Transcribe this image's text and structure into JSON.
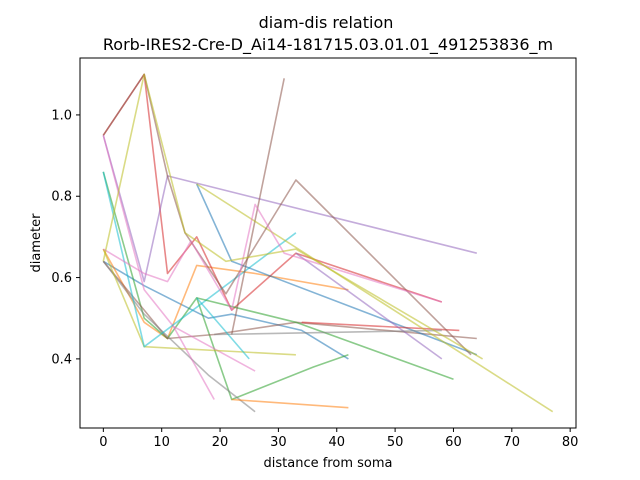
{
  "chart_data": {
    "type": "line",
    "title_line1": "diam-dis relation",
    "title_line2": "Rorb-IRES2-Cre-D_Ai14-181715.03.01.01_491253836_m",
    "xlabel": "distance from soma",
    "ylabel": "diameter",
    "xlim": [
      -4,
      81
    ],
    "ylim": [
      0.23,
      1.14
    ],
    "xticks": [
      0,
      10,
      20,
      30,
      40,
      50,
      60,
      70,
      80
    ],
    "yticks": [
      0.4,
      0.6,
      0.8,
      1.0
    ],
    "xtick_labels": [
      "0",
      "10",
      "20",
      "30",
      "40",
      "50",
      "60",
      "70",
      "80"
    ],
    "ytick_labels": [
      "0.4",
      "0.6",
      "0.8",
      "1.0"
    ],
    "grid": false,
    "series": [
      {
        "color": "#1f77b4",
        "points": [
          [
            0,
            0.64
          ],
          [
            7,
            0.58
          ],
          [
            18,
            0.5
          ],
          [
            22,
            0.51
          ],
          [
            34,
            0.47
          ],
          [
            42,
            0.4
          ]
        ]
      },
      {
        "color": "#ff7f0e",
        "points": [
          [
            0,
            0.67
          ],
          [
            7,
            0.49
          ],
          [
            11,
            0.45
          ],
          [
            16,
            0.63
          ],
          [
            26,
            0.61
          ],
          [
            42,
            0.57
          ]
        ]
      },
      {
        "color": "#2ca02c",
        "points": [
          [
            0,
            0.86
          ],
          [
            7,
            0.5
          ],
          [
            11,
            0.45
          ],
          [
            16,
            0.55
          ],
          [
            22,
            0.3
          ],
          [
            36,
            0.38
          ],
          [
            42,
            0.41
          ]
        ]
      },
      {
        "color": "#d62728",
        "points": [
          [
            0,
            0.95
          ],
          [
            7,
            1.1
          ],
          [
            11,
            0.61
          ],
          [
            16,
            0.7
          ],
          [
            22,
            0.52
          ],
          [
            33,
            0.66
          ],
          [
            58,
            0.54
          ]
        ]
      },
      {
        "color": "#9467bd",
        "points": [
          [
            0,
            0.95
          ],
          [
            7,
            0.59
          ],
          [
            11,
            0.85
          ],
          [
            64,
            0.66
          ]
        ]
      },
      {
        "color": "#8c564b",
        "points": [
          [
            0,
            0.64
          ],
          [
            7,
            0.52
          ],
          [
            11,
            0.45
          ],
          [
            19,
            0.46
          ],
          [
            33,
            0.49
          ],
          [
            64,
            0.45
          ]
        ]
      },
      {
        "color": "#e377c2",
        "points": [
          [
            0,
            0.95
          ],
          [
            7,
            0.57
          ],
          [
            12,
            0.48
          ],
          [
            26,
            0.37
          ]
        ]
      },
      {
        "color": "#7f7f7f",
        "points": [
          [
            0,
            0.64
          ],
          [
            7,
            0.51
          ],
          [
            18,
            0.36
          ],
          [
            26,
            0.27
          ]
        ]
      },
      {
        "color": "#bcbd22",
        "points": [
          [
            0,
            0.67
          ],
          [
            7,
            0.43
          ],
          [
            33,
            0.41
          ]
        ]
      },
      {
        "color": "#17becf",
        "points": [
          [
            0,
            0.86
          ],
          [
            7,
            0.43
          ],
          [
            33,
            0.71
          ]
        ]
      },
      {
        "color": "#1f77b4",
        "points": [
          [
            16,
            0.83
          ],
          [
            22,
            0.64
          ],
          [
            64,
            0.41
          ]
        ]
      },
      {
        "color": "#ff7f0e",
        "points": [
          [
            22,
            0.3
          ],
          [
            42,
            0.28
          ]
        ]
      },
      {
        "color": "#2ca02c",
        "points": [
          [
            16,
            0.55
          ],
          [
            33,
            0.49
          ],
          [
            60,
            0.35
          ]
        ]
      },
      {
        "color": "#d62728",
        "points": [
          [
            34,
            0.49
          ],
          [
            61,
            0.47
          ]
        ]
      },
      {
        "color": "#9467bd",
        "points": [
          [
            33,
            0.66
          ],
          [
            58,
            0.4
          ]
        ]
      },
      {
        "color": "#8c564b",
        "points": [
          [
            22,
            0.46
          ],
          [
            31,
            1.09
          ]
        ]
      },
      {
        "color": "#e377c2",
        "points": [
          [
            12,
            0.48
          ],
          [
            19,
            0.3
          ]
        ]
      },
      {
        "color": "#7f7f7f",
        "points": [
          [
            19,
            0.46
          ],
          [
            58,
            0.47
          ]
        ]
      },
      {
        "color": "#bcbd22",
        "points": [
          [
            16,
            0.83
          ],
          [
            77,
            0.27
          ]
        ]
      },
      {
        "color": "#17becf",
        "points": [
          [
            16,
            0.55
          ],
          [
            25,
            0.4
          ]
        ]
      },
      {
        "color": "#8c564b",
        "points": [
          [
            0,
            0.95
          ],
          [
            7,
            1.1
          ],
          [
            11,
            0.85
          ],
          [
            14,
            0.71
          ],
          [
            21,
            0.56
          ],
          [
            33,
            0.84
          ],
          [
            63,
            0.41
          ]
        ]
      },
      {
        "color": "#e377c2",
        "points": [
          [
            0,
            0.67
          ],
          [
            7,
            0.61
          ],
          [
            11,
            0.59
          ],
          [
            15,
            0.69
          ],
          [
            22,
            0.52
          ],
          [
            26,
            0.78
          ],
          [
            31,
            0.66
          ],
          [
            58,
            0.54
          ]
        ]
      },
      {
        "color": "#bcbd22",
        "points": [
          [
            0,
            0.64
          ],
          [
            7,
            1.1
          ],
          [
            14,
            0.71
          ],
          [
            21,
            0.64
          ],
          [
            33,
            0.67
          ],
          [
            65,
            0.4
          ]
        ]
      }
    ]
  }
}
